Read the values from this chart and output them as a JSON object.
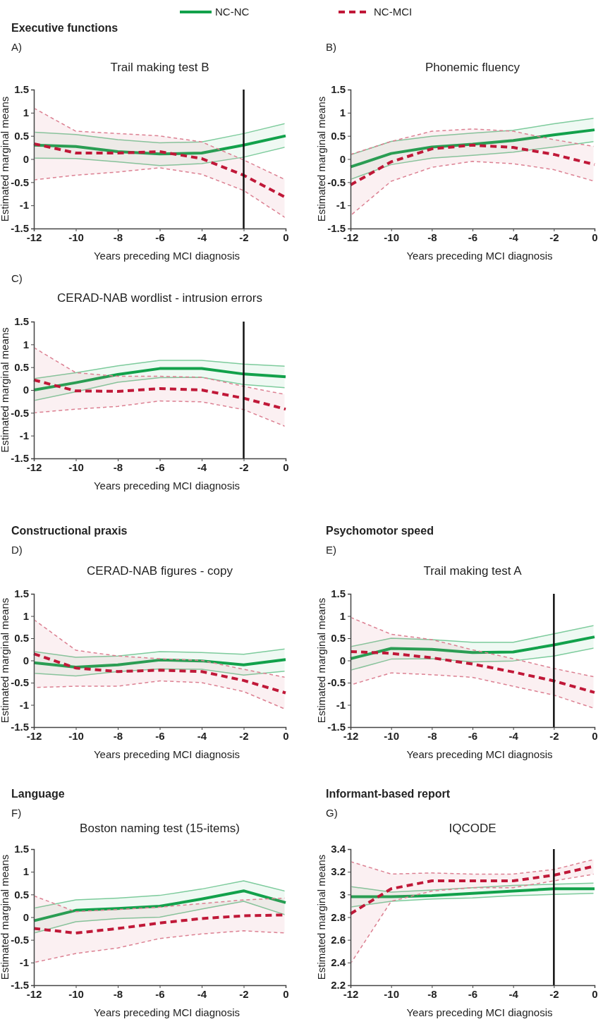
{
  "chart_data": [
    {
      "type": "line",
      "title": "Trail making test B",
      "annotations": [
        "Executive functions",
        "A)"
      ],
      "xlabel": "Years preceding MCI diagnosis",
      "ylabel": "Estimated marginal means",
      "x": [
        -12,
        -10,
        -8,
        -6,
        -4,
        -2,
        0
      ],
      "xlim": [
        -12,
        0
      ],
      "xticks": [
        -12,
        -10,
        -8,
        -6,
        -4,
        -2,
        0
      ],
      "ylim": [
        -1.5,
        1.5
      ],
      "yticks": [
        -1.5,
        -1,
        -0.5,
        0,
        0.5,
        1,
        1.5
      ],
      "legend": "top",
      "marker": "none",
      "ref_lines": [
        {
          "axis": "x",
          "value": -2,
          "color": "#111111"
        }
      ],
      "series": [
        {
          "name": "NC-NC",
          "color": "#12a14b",
          "line_style": "solid",
          "values": [
            0.3,
            0.27,
            0.16,
            0.11,
            0.13,
            0.3,
            0.5
          ],
          "upper": [
            0.58,
            0.53,
            0.42,
            0.35,
            0.37,
            0.55,
            0.77
          ],
          "lower": [
            0.02,
            0.01,
            -0.06,
            -0.14,
            -0.1,
            0.04,
            0.26
          ]
        },
        {
          "name": "NC-MCI",
          "color": "#c01838",
          "line_style": "dashed",
          "values": [
            0.33,
            0.13,
            0.13,
            0.16,
            0.01,
            -0.35,
            -0.83
          ],
          "upper": [
            1.1,
            0.6,
            0.55,
            0.5,
            0.37,
            -0.02,
            -0.45
          ],
          "lower": [
            -0.45,
            -0.35,
            -0.28,
            -0.19,
            -0.33,
            -0.68,
            -1.27
          ]
        }
      ]
    },
    {
      "type": "line",
      "title": "Phonemic fluency",
      "annotations": [
        "B)"
      ],
      "xlabel": "Years preceding MCI diagnosis",
      "ylabel": "Estimated marginal means",
      "x": [
        -12,
        -10,
        -8,
        -6,
        -4,
        -2,
        0
      ],
      "xlim": [
        -12,
        0
      ],
      "xticks": [
        -12,
        -10,
        -8,
        -6,
        -4,
        -2,
        0
      ],
      "ylim": [
        -1.5,
        1.5
      ],
      "yticks": [
        -1.5,
        -1,
        -0.5,
        0,
        0.5,
        1,
        1.5
      ],
      "marker": "none",
      "series": [
        {
          "color": "#12a14b",
          "line_style": "solid",
          "values": [
            -0.17,
            0.12,
            0.26,
            0.32,
            0.4,
            0.52,
            0.63
          ],
          "upper": [
            0.09,
            0.38,
            0.49,
            0.56,
            0.62,
            0.76,
            0.88
          ],
          "lower": [
            -0.44,
            -0.12,
            0.02,
            0.08,
            0.15,
            0.26,
            0.38
          ]
        },
        {
          "color": "#c01838",
          "line_style": "dashed",
          "values": [
            -0.56,
            -0.06,
            0.22,
            0.3,
            0.25,
            0.1,
            -0.12
          ],
          "upper": [
            0.1,
            0.38,
            0.6,
            0.65,
            0.6,
            0.42,
            0.27
          ],
          "lower": [
            -1.22,
            -0.48,
            -0.18,
            -0.05,
            -0.1,
            -0.23,
            -0.48
          ]
        }
      ]
    },
    {
      "type": "line",
      "title": "CERAD-NAB wordlist - intrusion errors",
      "annotations": [
        "C)"
      ],
      "xlabel": "Years preceding MCI diagnosis",
      "ylabel": "Estimated marginal means",
      "x": [
        -12,
        -10,
        -8,
        -6,
        -4,
        -2,
        0
      ],
      "xlim": [
        -12,
        0
      ],
      "xticks": [
        -12,
        -10,
        -8,
        -6,
        -4,
        -2,
        0
      ],
      "ylim": [
        -1.5,
        1.5
      ],
      "yticks": [
        -1.5,
        -1,
        -0.5,
        0,
        0.5,
        1,
        1.5
      ],
      "marker": "none",
      "ref_lines": [
        {
          "axis": "x",
          "value": -2,
          "color": "#111111"
        }
      ],
      "series": [
        {
          "color": "#12a14b",
          "line_style": "solid",
          "values": [
            0.0,
            0.16,
            0.34,
            0.47,
            0.47,
            0.35,
            0.29
          ],
          "upper": [
            0.25,
            0.38,
            0.53,
            0.65,
            0.65,
            0.57,
            0.52
          ],
          "lower": [
            -0.23,
            -0.04,
            0.17,
            0.27,
            0.28,
            0.12,
            0.05
          ]
        },
        {
          "color": "#c01838",
          "line_style": "dashed",
          "values": [
            0.22,
            -0.02,
            -0.03,
            0.03,
            0.0,
            -0.18,
            -0.42
          ],
          "upper": [
            0.93,
            0.38,
            0.3,
            0.3,
            0.28,
            0.08,
            -0.1
          ],
          "lower": [
            -0.5,
            -0.42,
            -0.36,
            -0.24,
            -0.26,
            -0.43,
            -0.8
          ]
        }
      ]
    },
    {
      "type": "line",
      "title": "CERAD-NAB figures - copy",
      "annotations": [
        "Constructional praxis",
        "D)"
      ],
      "xlabel": "Years preceding MCI diagnosis",
      "ylabel": "Estimated marginal means",
      "x": [
        -12,
        -10,
        -8,
        -6,
        -4,
        -2,
        0
      ],
      "xlim": [
        -12,
        0
      ],
      "xticks": [
        -12,
        -10,
        -8,
        -6,
        -4,
        -2,
        0
      ],
      "ylim": [
        -1.5,
        1.5
      ],
      "yticks": [
        -1.5,
        -1,
        -0.5,
        0,
        0.5,
        1,
        1.5
      ],
      "marker": "none",
      "series": [
        {
          "color": "#12a14b",
          "line_style": "solid",
          "values": [
            -0.05,
            -0.15,
            -0.1,
            0.01,
            -0.01,
            -0.1,
            0.02
          ],
          "upper": [
            0.2,
            0.07,
            0.1,
            0.2,
            0.18,
            0.14,
            0.26
          ],
          "lower": [
            -0.29,
            -0.35,
            -0.25,
            -0.19,
            -0.2,
            -0.33,
            -0.24
          ]
        },
        {
          "color": "#c01838",
          "line_style": "dashed",
          "values": [
            0.15,
            -0.17,
            -0.25,
            -0.22,
            -0.25,
            -0.45,
            -0.73
          ],
          "upper": [
            0.92,
            0.23,
            0.1,
            0.04,
            0.0,
            -0.2,
            -0.38
          ],
          "lower": [
            -0.61,
            -0.58,
            -0.58,
            -0.46,
            -0.5,
            -0.7,
            -1.1
          ]
        }
      ]
    },
    {
      "type": "line",
      "title": "Trail making test A",
      "annotations": [
        "Psychomotor speed",
        "E)"
      ],
      "xlabel": "Years preceding MCI diagnosis",
      "ylabel": "Estimated marginal means",
      "x": [
        -12,
        -10,
        -8,
        -6,
        -4,
        -2,
        0
      ],
      "xlim": [
        -12,
        0
      ],
      "xticks": [
        -12,
        -10,
        -8,
        -6,
        -4,
        -2,
        0
      ],
      "ylim": [
        -1.5,
        1.5
      ],
      "yticks": [
        -1.5,
        -1,
        -0.5,
        0,
        0.5,
        1,
        1.5
      ],
      "marker": "none",
      "ref_lines": [
        {
          "axis": "x",
          "value": -2,
          "color": "#111111"
        }
      ],
      "series": [
        {
          "color": "#12a14b",
          "line_style": "solid",
          "values": [
            0.04,
            0.27,
            0.25,
            0.18,
            0.19,
            0.35,
            0.53
          ],
          "upper": [
            0.31,
            0.5,
            0.47,
            0.41,
            0.41,
            0.6,
            0.79
          ],
          "lower": [
            -0.22,
            0.03,
            0.04,
            -0.03,
            -0.01,
            0.1,
            0.28
          ]
        },
        {
          "color": "#c01838",
          "line_style": "dashed",
          "values": [
            0.2,
            0.16,
            0.06,
            -0.08,
            -0.26,
            -0.46,
            -0.72
          ],
          "upper": [
            0.97,
            0.59,
            0.47,
            0.24,
            0.04,
            -0.18,
            -0.37
          ],
          "lower": [
            -0.55,
            -0.28,
            -0.32,
            -0.38,
            -0.58,
            -0.78,
            -1.08
          ]
        }
      ]
    },
    {
      "type": "line",
      "title": "Boston naming test (15-items)",
      "annotations": [
        "Language",
        "F)"
      ],
      "xlabel": "Years preceding MCI diagnosis",
      "ylabel": "Estimated marginal means",
      "x": [
        -12,
        -10,
        -8,
        -6,
        -4,
        -2,
        0
      ],
      "xlim": [
        -12,
        0
      ],
      "xticks": [
        -12,
        -10,
        -8,
        -6,
        -4,
        -2,
        0
      ],
      "ylim": [
        -1.5,
        1.5
      ],
      "yticks": [
        -1.5,
        -1,
        -0.5,
        0,
        0.5,
        1,
        1.5
      ],
      "marker": "none",
      "series": [
        {
          "color": "#12a14b",
          "line_style": "solid",
          "values": [
            -0.08,
            0.15,
            0.19,
            0.24,
            0.4,
            0.58,
            0.32
          ],
          "upper": [
            0.2,
            0.38,
            0.42,
            0.48,
            0.62,
            0.8,
            0.57
          ],
          "lower": [
            -0.35,
            -0.1,
            -0.03,
            0.0,
            0.18,
            0.35,
            0.05
          ]
        },
        {
          "color": "#c01838",
          "line_style": "dashed",
          "values": [
            -0.25,
            -0.35,
            -0.25,
            -0.13,
            -0.03,
            0.03,
            0.05
          ],
          "upper": [
            0.47,
            0.12,
            0.17,
            0.22,
            0.3,
            0.38,
            0.42
          ],
          "lower": [
            -1.0,
            -0.8,
            -0.68,
            -0.47,
            -0.37,
            -0.3,
            -0.35
          ]
        }
      ]
    },
    {
      "type": "line",
      "title": "IQCODE",
      "annotations": [
        "Informant-based report",
        "G)"
      ],
      "xlabel": "Years preceding MCI diagnosis",
      "ylabel": "Estimated marginal means",
      "x": [
        -12,
        -10,
        -8,
        -6,
        -4,
        -2,
        0
      ],
      "xlim": [
        -12,
        0
      ],
      "xticks": [
        -12,
        -10,
        -8,
        -6,
        -4,
        -2,
        0
      ],
      "ylim": [
        2.2,
        3.4
      ],
      "yticks": [
        2.2,
        2.4,
        2.6,
        2.8,
        3,
        3.2,
        3.4
      ],
      "marker": "none",
      "ref_lines": [
        {
          "axis": "x",
          "value": -2,
          "color": "#111111"
        }
      ],
      "series": [
        {
          "color": "#12a14b",
          "line_style": "solid",
          "values": [
            2.98,
            2.98,
            2.99,
            3.01,
            3.03,
            3.05,
            3.05
          ],
          "upper": [
            3.07,
            3.02,
            3.04,
            3.06,
            3.08,
            3.09,
            3.1
          ],
          "lower": [
            2.89,
            2.94,
            2.96,
            2.97,
            2.99,
            3.0,
            3.01
          ]
        },
        {
          "color": "#c01838",
          "line_style": "dashed",
          "values": [
            2.83,
            3.05,
            3.12,
            3.12,
            3.12,
            3.17,
            3.25
          ],
          "upper": [
            3.29,
            3.18,
            3.19,
            3.18,
            3.18,
            3.22,
            3.31
          ],
          "lower": [
            2.39,
            2.94,
            3.03,
            3.06,
            3.06,
            3.12,
            3.18
          ]
        }
      ]
    }
  ]
}
